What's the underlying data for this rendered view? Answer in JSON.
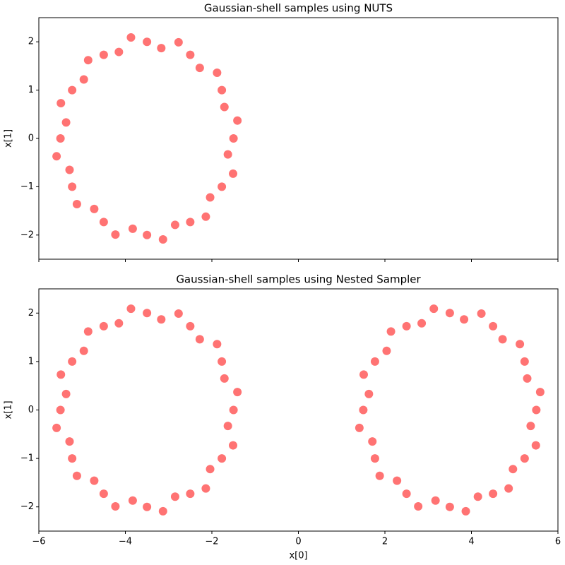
{
  "chart_data": [
    {
      "type": "scatter",
      "title": "Gaussian-shell samples using NUTS",
      "ylabel": "x[1]",
      "xlim": [
        -6,
        6
      ],
      "ylim": [
        -2.5,
        2.5
      ],
      "show_xtick_labels": false,
      "xticks": [
        -6,
        -4,
        -2,
        0,
        2,
        4,
        6
      ],
      "yticks": [
        {
          "value": -2,
          "label": "−2"
        },
        {
          "value": -1,
          "label": "−1"
        },
        0,
        1,
        2
      ],
      "series": [
        {
          "color": "#ff0000",
          "x": [
            -1.5,
            -1.41,
            -1.71,
            -1.77,
            -1.88,
            -2.28,
            -2.5,
            -2.77,
            -3.17,
            -3.5,
            -3.87,
            -4.15,
            -4.5,
            -4.86,
            -4.96,
            -5.23,
            -5.49,
            -5.37,
            -5.5,
            -5.59,
            -5.29,
            -5.23,
            -5.12,
            -4.72,
            -4.5,
            -4.23,
            -3.83,
            -3.5,
            -3.13,
            -2.85,
            -2.5,
            -2.14,
            -2.04,
            -1.77,
            -1.51,
            -1.63
          ],
          "y": [
            0,
            0.37,
            0.65,
            1.0,
            1.36,
            1.46,
            1.73,
            1.99,
            1.87,
            2.0,
            2.09,
            1.79,
            1.73,
            1.62,
            1.22,
            1.0,
            0.73,
            0.33,
            0,
            -0.37,
            -0.65,
            -1.0,
            -1.36,
            -1.46,
            -1.73,
            -1.99,
            -1.87,
            -2.0,
            -2.09,
            -1.79,
            -1.73,
            -1.62,
            -1.22,
            -1.0,
            -0.73,
            -0.33
          ]
        }
      ]
    },
    {
      "type": "scatter",
      "title": "Gaussian-shell samples using Nested Sampler",
      "xlabel": "x[0]",
      "ylabel": "x[1]",
      "xlim": [
        -6,
        6
      ],
      "ylim": [
        -2.5,
        2.5
      ],
      "show_xtick_labels": true,
      "xticks": [
        {
          "value": -6,
          "label": "−6"
        },
        {
          "value": -4,
          "label": "−4"
        },
        {
          "value": -2,
          "label": "−2"
        },
        0,
        2,
        4,
        6
      ],
      "yticks": [
        {
          "value": -2,
          "label": "−2"
        },
        {
          "value": -1,
          "label": "−1"
        },
        0,
        1,
        2
      ],
      "series": [
        {
          "color": "#ff0000",
          "x": [
            -1.5,
            -1.41,
            -1.71,
            -1.77,
            -1.88,
            -2.28,
            -2.5,
            -2.77,
            -3.17,
            -3.5,
            -3.87,
            -4.15,
            -4.5,
            -4.86,
            -4.96,
            -5.23,
            -5.49,
            -5.37,
            -5.5,
            -5.59,
            -5.29,
            -5.23,
            -5.12,
            -4.72,
            -4.5,
            -4.23,
            -3.83,
            -3.5,
            -3.13,
            -2.85,
            -2.5,
            -2.14,
            -2.04,
            -1.77,
            -1.51,
            -1.63,
            5.5,
            5.59,
            5.29,
            5.23,
            5.12,
            4.72,
            4.5,
            4.23,
            3.83,
            3.5,
            3.13,
            2.85,
            2.5,
            2.14,
            2.04,
            1.77,
            1.51,
            1.63,
            1.5,
            1.41,
            1.71,
            1.77,
            1.88,
            2.28,
            2.5,
            2.77,
            3.17,
            3.5,
            3.87,
            4.15,
            4.5,
            4.86,
            4.96,
            5.23,
            5.49,
            5.37
          ],
          "y": [
            0,
            0.37,
            0.65,
            1.0,
            1.36,
            1.46,
            1.73,
            1.99,
            1.87,
            2.0,
            2.09,
            1.79,
            1.73,
            1.62,
            1.22,
            1.0,
            0.73,
            0.33,
            0,
            -0.37,
            -0.65,
            -1.0,
            -1.36,
            -1.46,
            -1.73,
            -1.99,
            -1.87,
            -2.0,
            -2.09,
            -1.79,
            -1.73,
            -1.62,
            -1.22,
            -1.0,
            -0.73,
            -0.33,
            0,
            0.37,
            0.65,
            1.0,
            1.36,
            1.46,
            1.73,
            1.99,
            1.87,
            2.0,
            2.09,
            1.79,
            1.73,
            1.62,
            1.22,
            1.0,
            0.73,
            0.33,
            0,
            -0.37,
            -0.65,
            -1.0,
            -1.36,
            -1.46,
            -1.73,
            -1.99,
            -1.87,
            -2.0,
            -2.09,
            -1.79,
            -1.73,
            -1.62,
            -1.22,
            -1.0,
            -0.73,
            -0.33
          ]
        }
      ]
    }
  ]
}
